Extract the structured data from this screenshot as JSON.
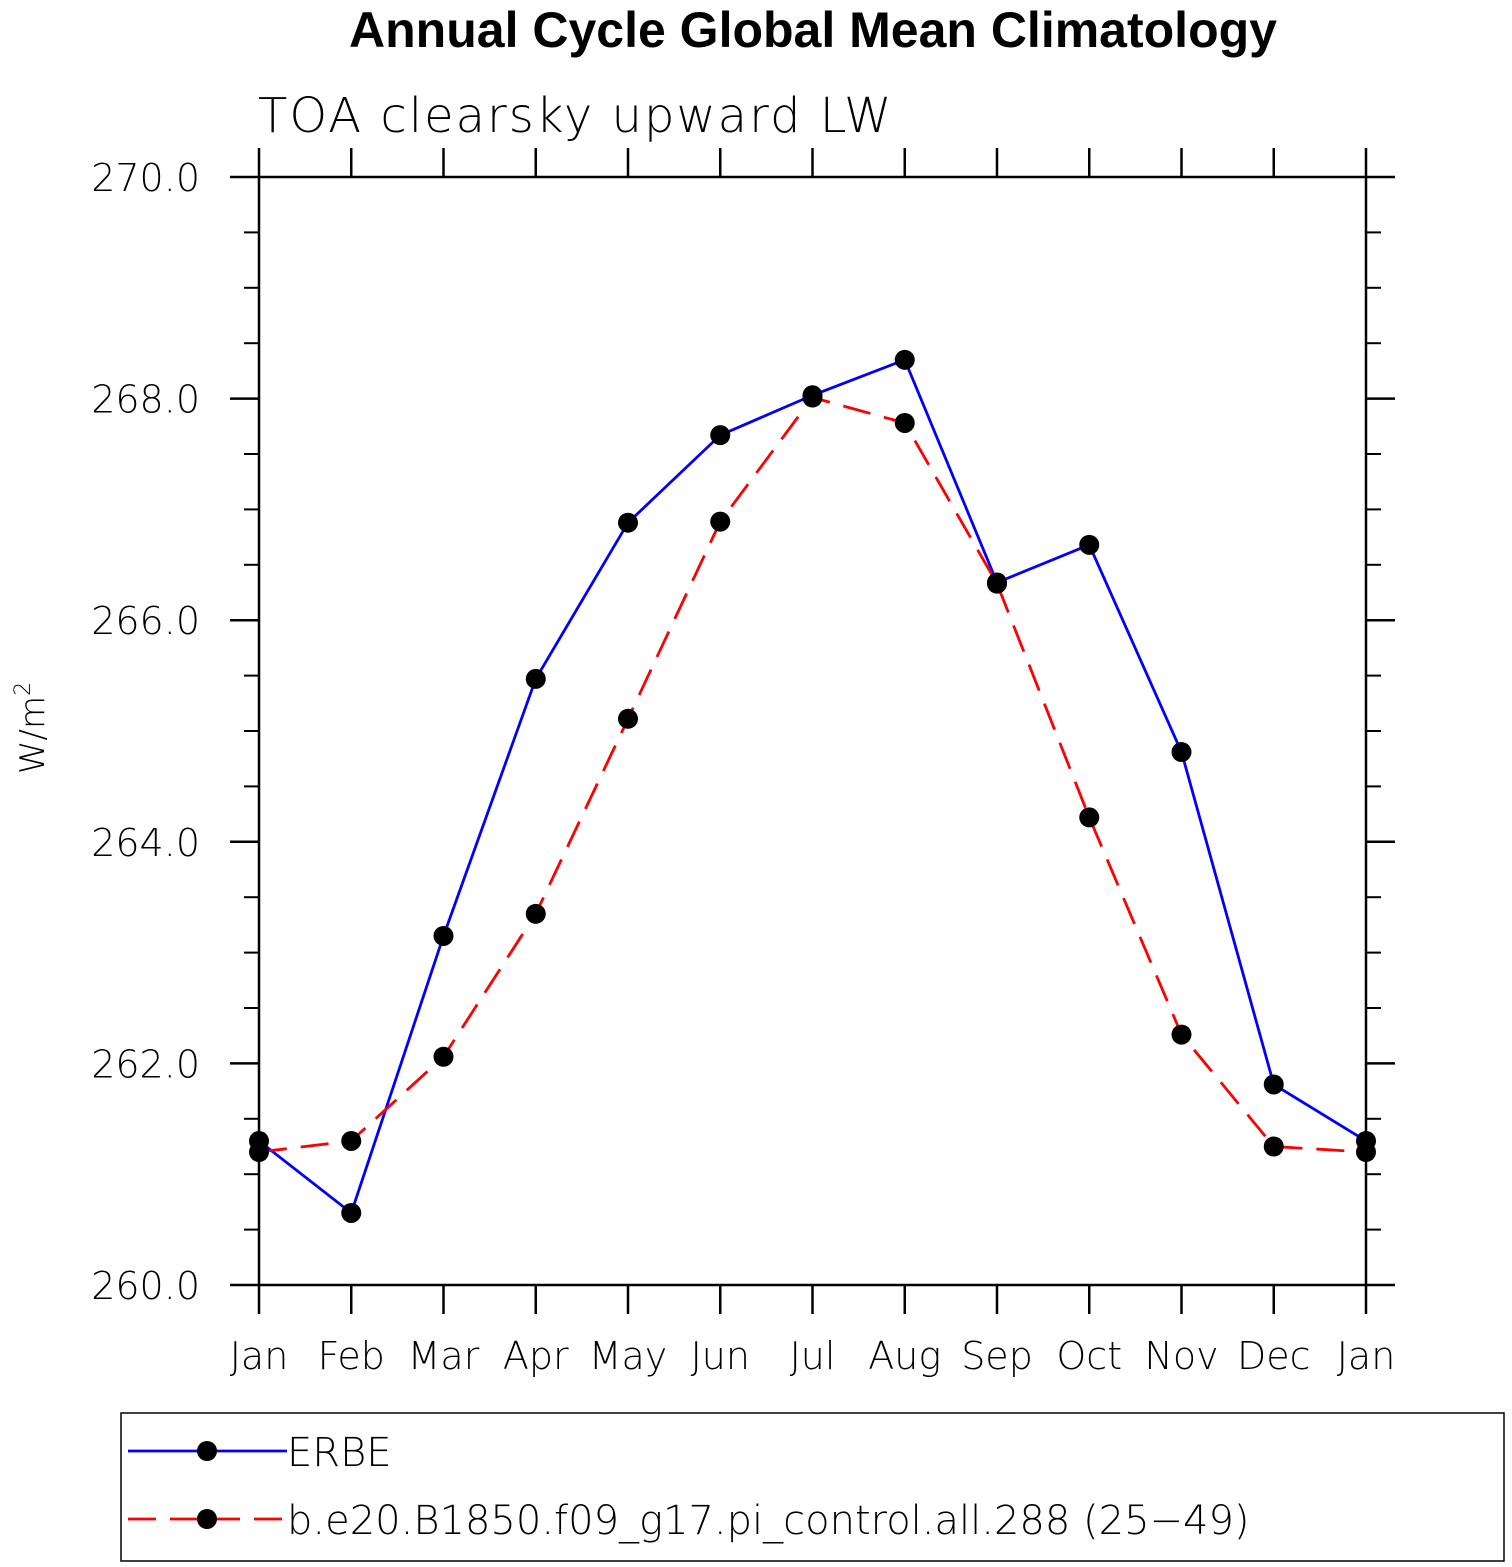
{
  "chart_data": {
    "type": "line",
    "title": "Annual Cycle Global Mean Climatology",
    "subtitle": "TOA clearsky upward LW",
    "ylabel_base": "W/m",
    "ylabel_sup": "2",
    "xlabel": "",
    "categories": [
      "Jan",
      "Feb",
      "Mar",
      "Apr",
      "May",
      "Jun",
      "Jul",
      "Aug",
      "Sep",
      "Oct",
      "Nov",
      "Dec",
      "Jan"
    ],
    "ylim": [
      260.0,
      270.0
    ],
    "yticks": [
      "260.0",
      "262.0",
      "264.0",
      "266.0",
      "268.0",
      "270.0"
    ],
    "yminor_step": 0.5,
    "grid": false,
    "legend_position": "bottom",
    "series": [
      {
        "name": "ERBE",
        "color": "#0000ff",
        "dashed": false,
        "marker": "filled-circle",
        "values": [
          261.3,
          260.65,
          263.15,
          265.47,
          266.88,
          267.67,
          268.03,
          268.35,
          266.34,
          266.68,
          264.81,
          261.81,
          261.3
        ]
      },
      {
        "name": "b.e20.B1850.f09_g17.pi_control.all.288 (25−49)",
        "color": "#ff0000",
        "dashed": true,
        "marker": "filled-circle",
        "values": [
          261.2,
          261.3,
          262.06,
          263.35,
          265.11,
          266.89,
          268.01,
          267.78,
          266.33,
          264.22,
          262.26,
          261.25,
          261.2
        ]
      }
    ]
  }
}
